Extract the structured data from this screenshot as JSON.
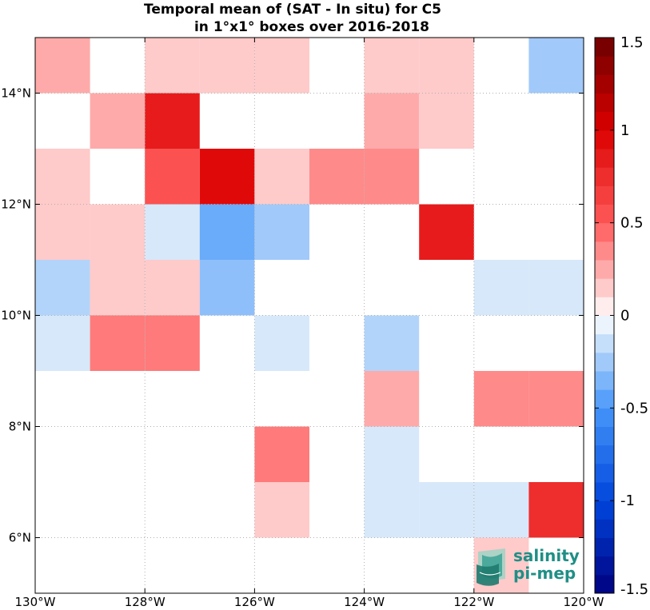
{
  "chart_data": {
    "type": "heatmap",
    "title": "Temporal mean of (SAT - In situ) for C5",
    "subtitle": "in 1°x1° boxes over 2016-2018",
    "x_ticks": [
      {
        "value": -130,
        "label": "130°W"
      },
      {
        "value": -128,
        "label": "128°W"
      },
      {
        "value": -126,
        "label": "126°W"
      },
      {
        "value": -124,
        "label": "124°W"
      },
      {
        "value": -122,
        "label": "122°W"
      },
      {
        "value": -120,
        "label": "120°W"
      }
    ],
    "y_ticks": [
      {
        "value": 6,
        "label": "6°N"
      },
      {
        "value": 8,
        "label": "8°N"
      },
      {
        "value": 10,
        "label": "10°N"
      },
      {
        "value": 12,
        "label": "12°N"
      },
      {
        "value": 14,
        "label": "14°N"
      }
    ],
    "xlim": [
      -130,
      -120
    ],
    "ylim": [
      5,
      15
    ],
    "grid": true,
    "colorbar": {
      "range": [
        -1.5,
        1.5
      ],
      "levels": 30,
      "ticks": [
        {
          "value": 1.5,
          "label": "1.5"
        },
        {
          "value": 1,
          "label": "1"
        },
        {
          "value": 0.5,
          "label": "0.5"
        },
        {
          "value": 0,
          "label": "0"
        },
        {
          "value": -0.5,
          "label": "-0.5"
        },
        {
          "value": -1,
          "label": "-1"
        },
        {
          "value": -1.5,
          "label": "-1.5"
        }
      ],
      "position": "right"
    },
    "cell_size_deg": 1,
    "cells": [
      {
        "lon": -130,
        "lat": 14,
        "value": 0.25
      },
      {
        "lon": -128,
        "lat": 14,
        "value": 0.15
      },
      {
        "lon": -127,
        "lat": 14,
        "value": 0.15
      },
      {
        "lon": -126,
        "lat": 14,
        "value": 0.15
      },
      {
        "lon": -124,
        "lat": 14,
        "value": 0.15
      },
      {
        "lon": -123,
        "lat": 14,
        "value": 0.15
      },
      {
        "lon": -121,
        "lat": 14,
        "value": -0.25
      },
      {
        "lon": -129,
        "lat": 13,
        "value": 0.25
      },
      {
        "lon": -128,
        "lat": 13,
        "value": 0.85
      },
      {
        "lon": -124,
        "lat": 13,
        "value": 0.25
      },
      {
        "lon": -123,
        "lat": 13,
        "value": 0.15
      },
      {
        "lon": -130,
        "lat": 12,
        "value": 0.15
      },
      {
        "lon": -128,
        "lat": 12,
        "value": 0.55
      },
      {
        "lon": -127,
        "lat": 12,
        "value": 0.95
      },
      {
        "lon": -126,
        "lat": 12,
        "value": 0.15
      },
      {
        "lon": -125,
        "lat": 12,
        "value": 0.35
      },
      {
        "lon": -124,
        "lat": 12,
        "value": 0.35
      },
      {
        "lon": -130,
        "lat": 11,
        "value": 0.15
      },
      {
        "lon": -129,
        "lat": 11,
        "value": 0.15
      },
      {
        "lon": -128,
        "lat": 11,
        "value": -0.1
      },
      {
        "lon": -127,
        "lat": 11,
        "value": -0.4
      },
      {
        "lon": -126,
        "lat": 11,
        "value": -0.25
      },
      {
        "lon": -123,
        "lat": 11,
        "value": 0.85
      },
      {
        "lon": -130,
        "lat": 10,
        "value": -0.2
      },
      {
        "lon": -129,
        "lat": 10,
        "value": 0.15
      },
      {
        "lon": -128,
        "lat": 10,
        "value": 0.15
      },
      {
        "lon": -127,
        "lat": 10,
        "value": -0.3
      },
      {
        "lon": -122,
        "lat": 10,
        "value": -0.1
      },
      {
        "lon": -121,
        "lat": 10,
        "value": -0.1
      },
      {
        "lon": -130,
        "lat": 9,
        "value": -0.1
      },
      {
        "lon": -129,
        "lat": 9,
        "value": 0.4
      },
      {
        "lon": -128,
        "lat": 9,
        "value": 0.4
      },
      {
        "lon": -126,
        "lat": 9,
        "value": -0.1
      },
      {
        "lon": -124,
        "lat": 9,
        "value": -0.2
      },
      {
        "lon": -124,
        "lat": 8,
        "value": 0.25
      },
      {
        "lon": -122,
        "lat": 8,
        "value": 0.35
      },
      {
        "lon": -121,
        "lat": 8,
        "value": 0.35
      },
      {
        "lon": -126,
        "lat": 7,
        "value": 0.4
      },
      {
        "lon": -124,
        "lat": 7,
        "value": -0.1
      },
      {
        "lon": -126,
        "lat": 6,
        "value": 0.15
      },
      {
        "lon": -124,
        "lat": 6,
        "value": -0.1
      },
      {
        "lon": -123,
        "lat": 6,
        "value": -0.1
      },
      {
        "lon": -122,
        "lat": 6,
        "value": -0.1
      },
      {
        "lon": -121,
        "lat": 6,
        "value": 0.75
      },
      {
        "lon": -122,
        "lat": 5,
        "value": 0.15
      }
    ]
  },
  "logo": {
    "line1": "salinity",
    "line2": "pi-mep",
    "color": "#1f8f86"
  }
}
